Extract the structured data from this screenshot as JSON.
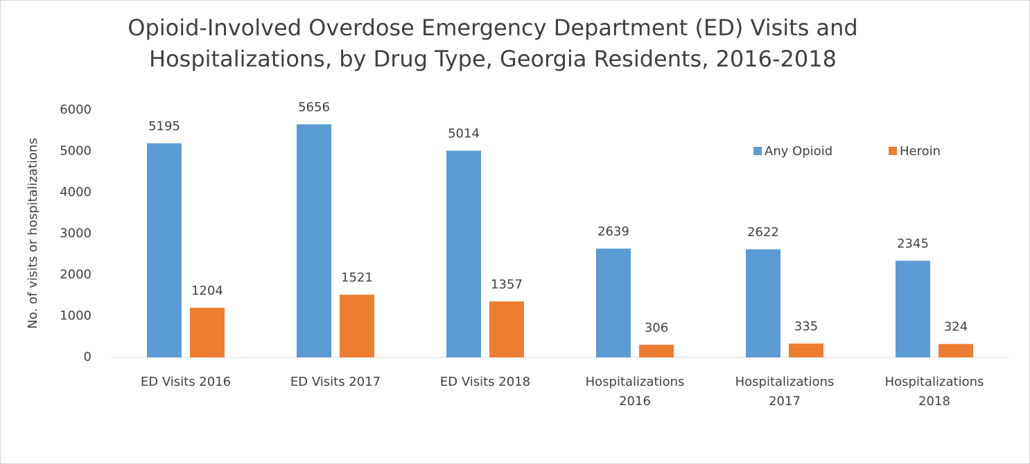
{
  "chart_data": {
    "type": "bar",
    "title": "Opioid-Involved Overdose Emergency Department (ED) Visits and Hospitalizations, by Drug Type, Georgia Residents, 2016-2018",
    "y_label": "No. of visits or hospitalizations",
    "categories": [
      "ED Visits 2016",
      "ED Visits 2017",
      "ED Visits 2018",
      "Hospitalizations 2016",
      "Hospitalizations 2017",
      "Hospitalizations 2018"
    ],
    "series": [
      {
        "name": "Any Opioid",
        "color": "#5b9bd5",
        "values": [
          5195,
          5656,
          5014,
          2639,
          2622,
          2345
        ]
      },
      {
        "name": "Heroin",
        "color": "#ed7d31",
        "values": [
          1204,
          1521,
          1357,
          306,
          335,
          324
        ]
      }
    ],
    "ylim": [
      0,
      6000
    ],
    "yticks": [
      0,
      1000,
      2000,
      3000,
      4000,
      5000,
      6000
    ],
    "grid": false,
    "legend": "top-right"
  }
}
